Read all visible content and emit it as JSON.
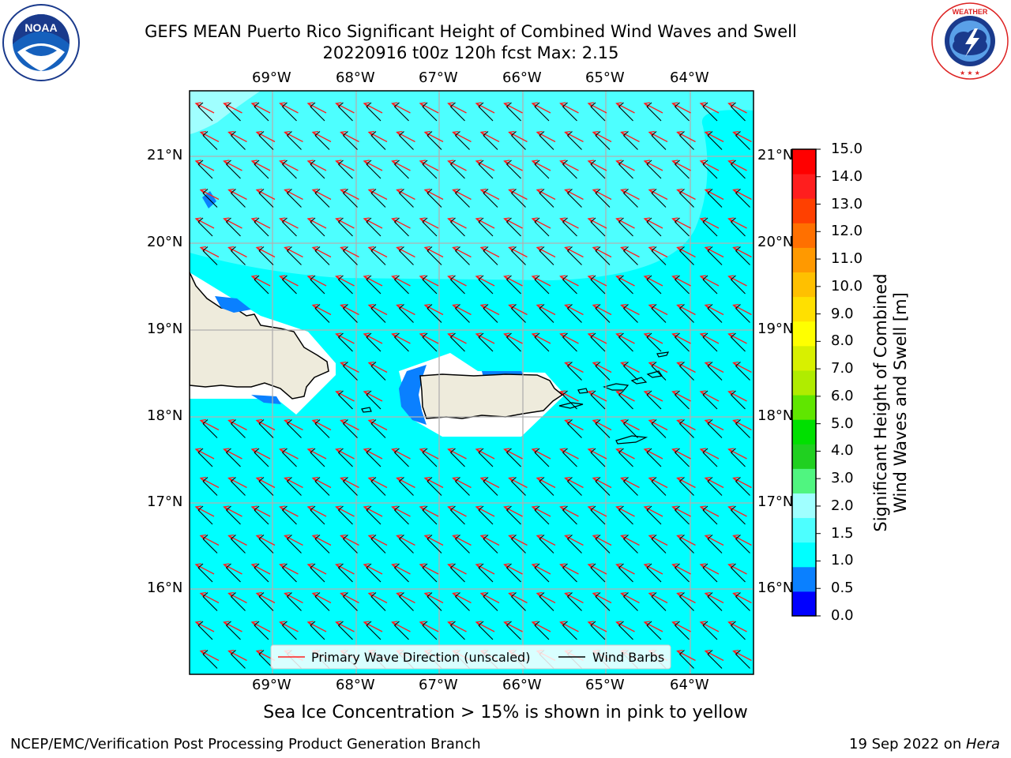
{
  "header": {
    "title_line1": "GEFS MEAN Puerto Rico Significant Height of Combined Wind Waves and Swell",
    "title_line2": "20220916 t00z 120h fcst   Max: 2.15"
  },
  "logos": {
    "left": {
      "icon": "noaa-logo",
      "text": "NOAA",
      "ring_text": "NATIONAL OCEANIC AND ATMOSPHERIC ADMINISTRATION · U.S. DEPARTMENT OF COMMERCE"
    },
    "right": {
      "icon": "nws-logo",
      "ring_text": "NATIONAL WEATHER SERVICE"
    }
  },
  "map": {
    "lon_labels": [
      "69°W",
      "68°W",
      "67°W",
      "66°W",
      "65°W",
      "64°W"
    ],
    "lat_labels": [
      "21°N",
      "20°N",
      "19°N",
      "18°N",
      "17°N",
      "16°N"
    ],
    "legend": {
      "primary_wave": "Primary Wave Direction (unscaled)",
      "wind_barbs": "Wind Barbs"
    },
    "colors": {
      "ocean_main": "#00ffff",
      "ocean_high": "#4dffff",
      "ocean_low": "#0a80ff",
      "land": "#eeebdc",
      "arrow": "#ff2020"
    }
  },
  "colorbar": {
    "title": "Significant Height of Combined Wind Waves and Swell [m]",
    "title_line1": "Significant Height of Combined",
    "title_line2": "Wind Waves and Swell [m]",
    "ticks": [
      "15.0",
      "14.0",
      "13.0",
      "12.0",
      "11.0",
      "10.0",
      "9.0",
      "8.0",
      "7.0",
      "6.0",
      "5.0",
      "4.0",
      "3.0",
      "2.0",
      "1.5",
      "1.0",
      "0.5",
      "0.0"
    ],
    "colors_bottom_to_top": [
      "#0000ff",
      "#0a80ff",
      "#00ffff",
      "#4dffff",
      "#a0ffff",
      "#50f580",
      "#20d020",
      "#00e000",
      "#60e600",
      "#b0ec00",
      "#d8f000",
      "#ffff00",
      "#ffe000",
      "#ffc000",
      "#ff9900",
      "#ff7000",
      "#ff4000",
      "#ff1e1e",
      "#ff0000"
    ]
  },
  "subnote": "Sea Ice Concentration > 15% is shown in pink to yellow",
  "footer": {
    "left": "NCEP/EMC/Verification Post Processing Product Generation Branch",
    "right_prefix": "19 Sep 2022 on ",
    "right_host": "Hera"
  }
}
